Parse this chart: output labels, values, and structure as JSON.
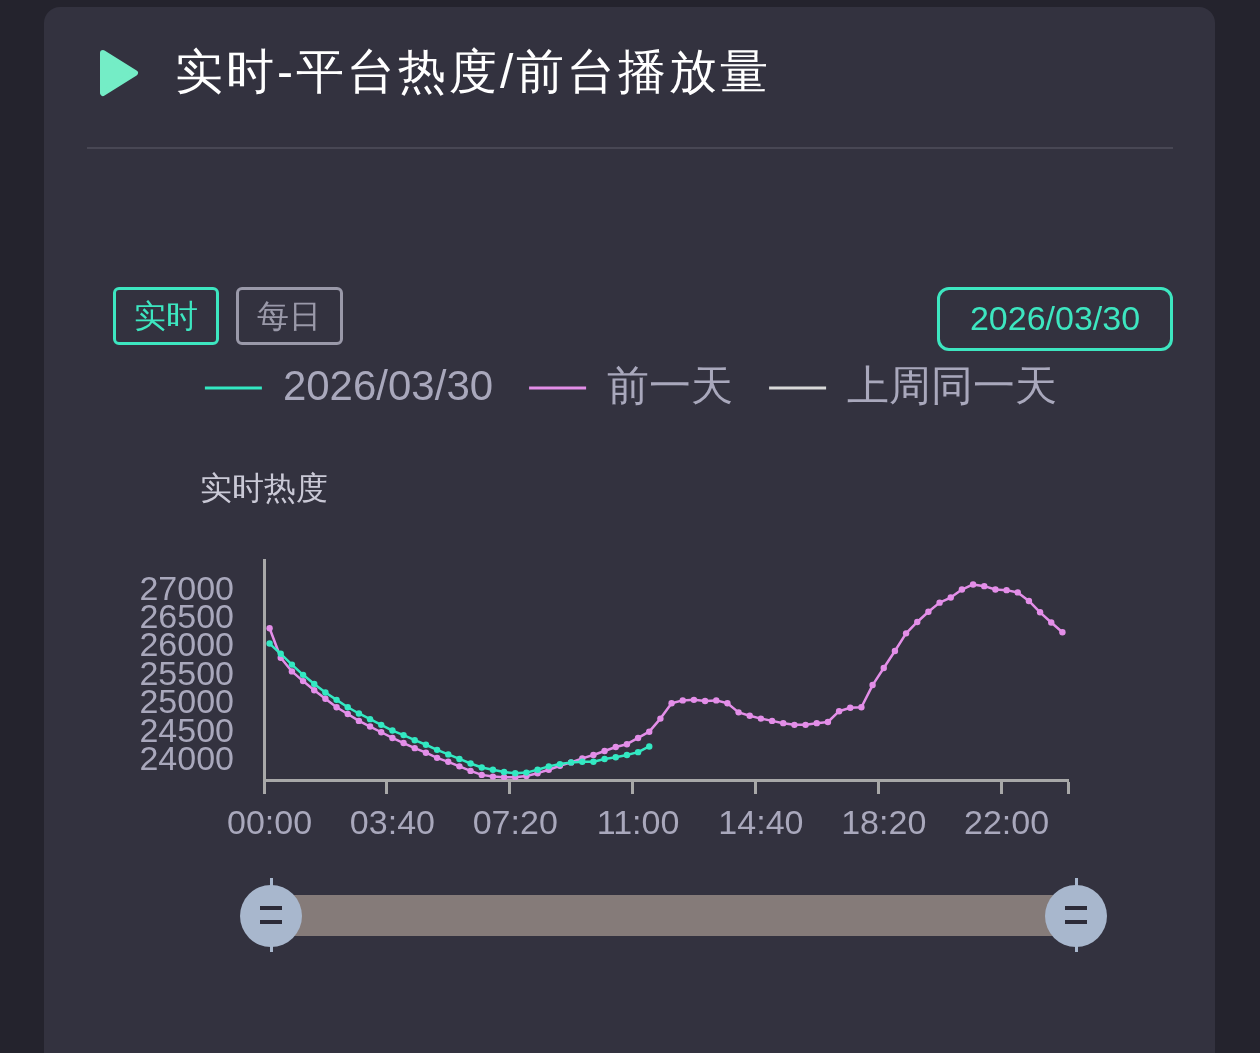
{
  "chart_data": {
    "type": "line",
    "title": "实时-平台热度/前台播放量",
    "ylabel": "实时热度",
    "annotations": [
      "实时",
      "每日",
      "2026/03/30"
    ],
    "categories": [
      "00:00",
      null,
      null,
      null,
      null,
      null,
      null,
      null,
      null,
      null,
      null,
      "03:40",
      null,
      null,
      null,
      null,
      null,
      null,
      null,
      null,
      null,
      null,
      "07:20",
      null,
      null,
      null,
      null,
      null,
      null,
      null,
      null,
      null,
      null,
      "11:00",
      null,
      null,
      null,
      null,
      null,
      null,
      null,
      null,
      null,
      null,
      "14:40",
      null,
      null,
      null,
      null,
      null,
      null,
      null,
      null,
      null,
      null,
      "18:20",
      null,
      null,
      null,
      null,
      null,
      null,
      null,
      null,
      null,
      null,
      "22:00",
      null,
      null,
      null,
      null,
      null
    ],
    "series": [
      {
        "name": "2026/03/30",
        "color": "#33e8c2",
        "values": [
          26060,
          25880,
          25690,
          25510,
          25350,
          25200,
          25070,
          24940,
          24830,
          24730,
          24630,
          24530,
          24450,
          24360,
          24280,
          24190,
          24110,
          24030,
          23950,
          23880,
          23840,
          23800,
          23780,
          23790,
          23840,
          23900,
          23940,
          23970,
          23980,
          23980,
          24030,
          24060,
          24100,
          24150,
          24250,
          null,
          null,
          null,
          null,
          null,
          null,
          null,
          null,
          null,
          null,
          null,
          null,
          null,
          null,
          null,
          null,
          null,
          null,
          null,
          null,
          null,
          null,
          null,
          null,
          null,
          null,
          null,
          null,
          null,
          null,
          null,
          null,
          null,
          null,
          null,
          null,
          null
        ]
      },
      {
        "name": "前一天",
        "color": "#e38ee8",
        "values": [
          26330,
          25810,
          25570,
          25400,
          25240,
          25090,
          24940,
          24820,
          24700,
          24600,
          24500,
          24400,
          24310,
          24220,
          24140,
          24050,
          23980,
          23900,
          23820,
          23750,
          23720,
          23710,
          23710,
          23730,
          23780,
          23840,
          23910,
          23970,
          24040,
          24100,
          24170,
          24240,
          24290,
          24400,
          24510,
          24740,
          25010,
          25060,
          25070,
          25050,
          25060,
          25010,
          24850,
          24790,
          24740,
          24700,
          24660,
          24630,
          24630,
          24660,
          24680,
          24870,
          24930,
          24940,
          25330,
          25630,
          25930,
          26240,
          26440,
          26620,
          26780,
          26870,
          27010,
          27100,
          27070,
          27010,
          27000,
          26960,
          26810,
          26610,
          26430,
          26260
        ]
      },
      {
        "name": "上周同一天",
        "color": "#d9d9d9",
        "values": [
          null,
          null,
          null,
          null,
          null,
          null,
          null,
          null,
          null,
          null,
          null,
          null,
          null,
          null,
          null,
          null,
          null,
          null,
          null,
          null,
          null,
          null,
          null,
          null,
          null,
          null,
          null,
          null,
          null,
          null,
          null,
          null,
          null,
          null,
          null,
          null,
          null,
          null,
          null,
          null,
          null,
          null,
          null,
          null,
          null,
          null,
          null,
          null,
          null,
          null,
          null,
          null,
          null,
          null,
          null,
          null,
          null,
          null,
          null,
          null,
          null,
          null,
          null,
          null,
          null,
          null,
          null,
          null,
          null,
          null,
          null,
          null
        ]
      }
    ],
    "ylim": [
      23660,
      27530
    ],
    "yticks": [
      24000,
      24500,
      25000,
      25500,
      26000,
      26500,
      27000
    ],
    "legend": "top",
    "marker": "circle"
  }
}
